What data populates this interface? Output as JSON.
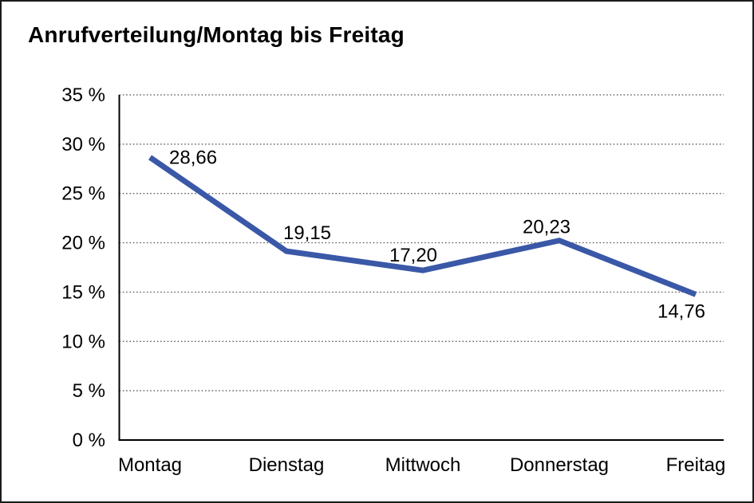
{
  "page": {
    "background_color": "#FFFFFF",
    "border_color": "#1B1B1B"
  },
  "chart_data": {
    "type": "line",
    "title": "Anrufverteilung/Montag bis Freitag",
    "categories": [
      "Montag",
      "Dienstag",
      "Mittwoch",
      "Donnerstag",
      "Freitag"
    ],
    "values": [
      28.66,
      19.15,
      17.2,
      20.23,
      14.76
    ],
    "data_labels": [
      "28,66",
      "19,15",
      "17,20",
      "20,23",
      "14,76"
    ],
    "xlabel": "",
    "ylabel": "",
    "ylim": [
      0,
      35
    ],
    "y_ticks": [
      0,
      5,
      10,
      15,
      20,
      25,
      30,
      35
    ],
    "y_tick_labels": [
      "0 %",
      "5 %",
      "10 %",
      "15 %",
      "20 %",
      "25 %",
      "30 %",
      "35 %"
    ],
    "grid": "horizontal-dotted",
    "legend": "none",
    "colors": {
      "line": "#3A58A7",
      "grid": "#4D4D4D",
      "axis": "#000000",
      "text": "#000000"
    }
  }
}
